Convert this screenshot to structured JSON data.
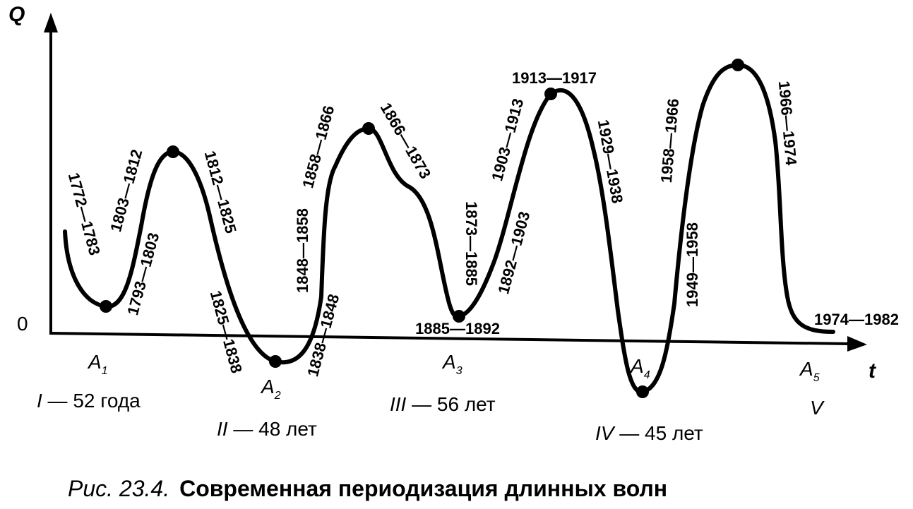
{
  "axes": {
    "y_label": "Q",
    "x_label": "t",
    "origin_label": "0"
  },
  "intervals": [
    "1772—1783",
    "1803—1812",
    "1793—1803",
    "1812—1825",
    "1825—1838",
    "1838—1848",
    "1848—1858",
    "1858—1866",
    "1866—1873",
    "1873—1885",
    "1885—1892",
    "1892—1903",
    "1903—1913",
    "1913—1917",
    "1929—1938",
    "1958—1966",
    "1949—1958",
    "1966—1974",
    "1974—1982"
  ],
  "points": [
    {
      "letter": "A",
      "sub": "1"
    },
    {
      "letter": "A",
      "sub": "2"
    },
    {
      "letter": "A",
      "sub": "3"
    },
    {
      "letter": "A",
      "sub": "4"
    },
    {
      "letter": "A",
      "sub": "5"
    }
  ],
  "periods": [
    {
      "num": "I",
      "dur": "52 года"
    },
    {
      "num": "II",
      "dur": "48 лет"
    },
    {
      "num": "III",
      "dur": "56 лет"
    },
    {
      "num": "IV",
      "dur": "45 лет"
    },
    {
      "num": "V",
      "dur": ""
    }
  ],
  "caption": {
    "prefix": "Рис. 23.4.",
    "title": "Современная периодизация длинных волн"
  }
}
